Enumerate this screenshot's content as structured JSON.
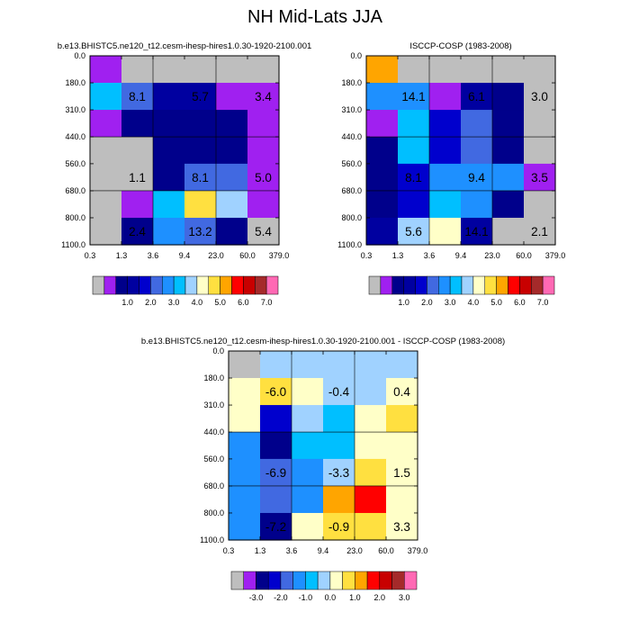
{
  "page_title": "NH Mid-Lats JJA",
  "palettes": {
    "abs": [
      "#bebebe",
      "#a020f0",
      "#00008b",
      "#0000a0",
      "#0000cd",
      "#4169e1",
      "#1e90ff",
      "#00bfff",
      "#a0d2ff",
      "#ffffc8",
      "#ffe040",
      "#ffa500",
      "#ff0000",
      "#c80000",
      "#a52a2a",
      "#ff69b4"
    ],
    "diff": [
      "#bebebe",
      "#a020f0",
      "#00008b",
      "#0000cd",
      "#4169e1",
      "#1e90ff",
      "#00bfff",
      "#a0d2ff",
      "#ffffc8",
      "#ffe040",
      "#ffa500",
      "#ff0000",
      "#c80000",
      "#a52a2a",
      "#ff69b4"
    ]
  },
  "chart_data": [
    {
      "id": "model",
      "type": "heatmap",
      "title": "b.e13.BHISTC5.ne120_t12.cesm-ihesp-hires1.0.30-1920-2100.001",
      "x_ticks": [
        "0.3",
        "1.3",
        "3.6",
        "9.4",
        "23.0",
        "60.0",
        "379.0"
      ],
      "y_ticks": [
        "0.0",
        "180.0",
        "310.0",
        "440.0",
        "560.0",
        "680.0",
        "800.0",
        "1100.0"
      ],
      "palette": "abs",
      "cells": [
        [
          1,
          0,
          0,
          0,
          0,
          0
        ],
        [
          7,
          5,
          3,
          3,
          1,
          1
        ],
        [
          1,
          2,
          2,
          2,
          2,
          1
        ],
        [
          0,
          0,
          2,
          2,
          2,
          1
        ],
        [
          0,
          0,
          2,
          5,
          5,
          1
        ],
        [
          0,
          1,
          7,
          10,
          8,
          1
        ],
        [
          0,
          2,
          6,
          5,
          2,
          0
        ]
      ],
      "labels": [
        {
          "text": "8.1",
          "col": 1,
          "row": 1
        },
        {
          "text": "5.7",
          "col": 3,
          "row": 1
        },
        {
          "text": "3.4",
          "col": 5,
          "row": 1
        },
        {
          "text": "1.1",
          "col": 1,
          "row": 4
        },
        {
          "text": "8.1",
          "col": 3,
          "row": 4
        },
        {
          "text": "5.0",
          "col": 5,
          "row": 4
        },
        {
          "text": "2.4",
          "col": 1,
          "row": 6
        },
        {
          "text": "13.2",
          "col": 3,
          "row": 6
        },
        {
          "text": "5.4",
          "col": 5,
          "row": 6
        }
      ],
      "colorbar_labels": [
        "1.0",
        "2.0",
        "3.0",
        "4.0",
        "5.0",
        "6.0",
        "7.0"
      ]
    },
    {
      "id": "obs",
      "type": "heatmap",
      "title": "ISCCP-COSP (1983-2008)",
      "x_ticks": [
        "0.3",
        "1.3",
        "3.6",
        "9.4",
        "23.0",
        "60.0",
        "379.0"
      ],
      "y_ticks": [
        "0.0",
        "180.0",
        "310.0",
        "440.0",
        "560.0",
        "680.0",
        "800.0",
        "1100.0"
      ],
      "palette": "abs",
      "cells": [
        [
          11,
          0,
          0,
          0,
          0,
          0
        ],
        [
          6,
          6,
          1,
          3,
          2,
          0
        ],
        [
          1,
          7,
          4,
          5,
          2,
          0
        ],
        [
          2,
          7,
          4,
          5,
          2,
          0
        ],
        [
          2,
          4,
          6,
          6,
          6,
          1
        ],
        [
          2,
          4,
          7,
          6,
          2,
          0
        ],
        [
          3,
          8,
          9,
          3,
          0,
          0
        ]
      ],
      "labels": [
        {
          "text": "14.1",
          "col": 1,
          "row": 1
        },
        {
          "text": "6.1",
          "col": 3,
          "row": 1
        },
        {
          "text": "3.0",
          "col": 5,
          "row": 1
        },
        {
          "text": "8.1",
          "col": 1,
          "row": 4
        },
        {
          "text": "9.4",
          "col": 3,
          "row": 4
        },
        {
          "text": "3.5",
          "col": 5,
          "row": 4
        },
        {
          "text": "5.6",
          "col": 1,
          "row": 6
        },
        {
          "text": "14.1",
          "col": 3,
          "row": 6
        },
        {
          "text": "2.1",
          "col": 5,
          "row": 6
        }
      ],
      "colorbar_labels": [
        "1.0",
        "2.0",
        "3.0",
        "4.0",
        "5.0",
        "6.0",
        "7.0"
      ]
    },
    {
      "id": "diff",
      "type": "heatmap",
      "title": "b.e13.BHISTC5.ne120_t12.cesm-ihesp-hires1.0.30-1920-2100.001 - ISCCP-COSP (1983-2008)",
      "x_ticks": [
        "0.3",
        "1.3",
        "3.6",
        "9.4",
        "23.0",
        "60.0",
        "379.0"
      ],
      "y_ticks": [
        "0.0",
        "180.0",
        "310.0",
        "440.0",
        "560.0",
        "680.0",
        "800.0",
        "1100.0"
      ],
      "palette": "diff",
      "cells": [
        [
          0,
          7,
          7,
          7,
          7,
          7
        ],
        [
          8,
          9,
          8,
          7,
          7,
          8
        ],
        [
          8,
          3,
          7,
          6,
          8,
          9
        ],
        [
          5,
          2,
          6,
          6,
          8,
          8
        ],
        [
          5,
          4,
          5,
          7,
          9,
          8
        ],
        [
          5,
          4,
          5,
          10,
          11,
          8
        ],
        [
          5,
          2,
          8,
          9,
          9,
          8
        ]
      ],
      "labels": [
        {
          "text": "-6.0",
          "col": 1,
          "row": 1
        },
        {
          "text": "-0.4",
          "col": 3,
          "row": 1
        },
        {
          "text": "0.4",
          "col": 5,
          "row": 1
        },
        {
          "text": "-6.9",
          "col": 1,
          "row": 4
        },
        {
          "text": "-3.3",
          "col": 3,
          "row": 4
        },
        {
          "text": "1.5",
          "col": 5,
          "row": 4
        },
        {
          "text": "-7.2",
          "col": 1,
          "row": 6
        },
        {
          "text": "-0.9",
          "col": 3,
          "row": 6
        },
        {
          "text": "3.3",
          "col": 5,
          "row": 6
        }
      ],
      "colorbar_labels": [
        "-3.0",
        "-2.0",
        "-1.0",
        "0.0",
        "1.0",
        "2.0",
        "3.0"
      ]
    }
  ]
}
